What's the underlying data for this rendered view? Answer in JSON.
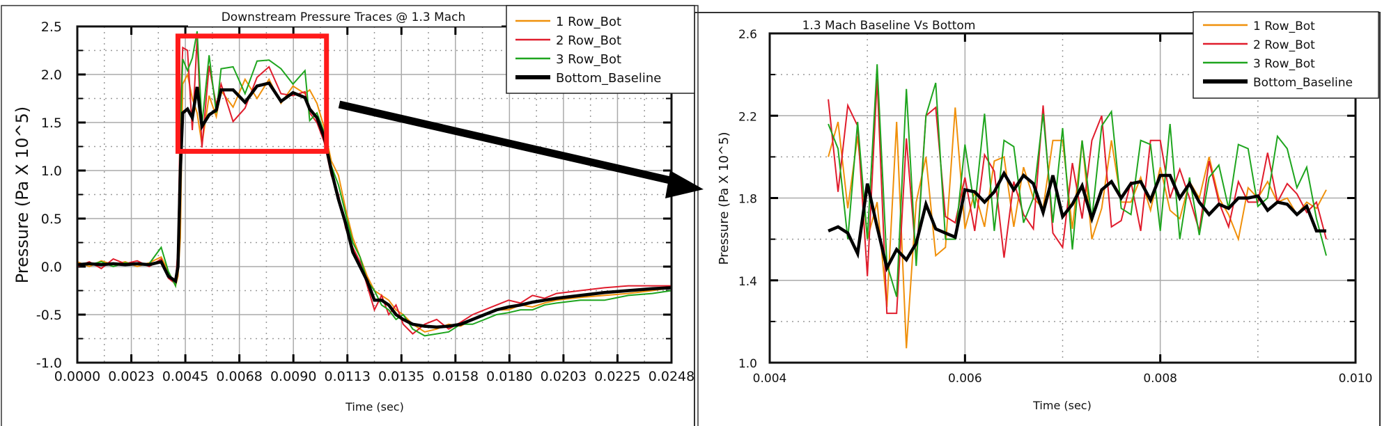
{
  "colors": {
    "row1": "#f0900a",
    "row2": "#e01c2c",
    "row3": "#1ea51e",
    "baseline": "#000000",
    "highlight_box": "#ff1a1a"
  },
  "chart_data": [
    {
      "type": "line",
      "title": "Downstream Pressure Traces @ 1.3 Mach",
      "xlabel": "Time (sec)",
      "ylabel": "Pressure (Pa X 10^5)",
      "xlim": [
        0,
        0.0248
      ],
      "ylim": [
        -1.0,
        2.5
      ],
      "grid": true,
      "legend_position": "top-right",
      "x_tick_labels": [
        "0.0000",
        "0.0023",
        "0.0045",
        "0.0068",
        "0.0090",
        "0.0113",
        "0.0135",
        "0.0158",
        "0.0180",
        "0.0203",
        "0.0225",
        "0.0248"
      ],
      "y_tick_labels": [
        "2.5",
        "2.0",
        "1.5",
        "1.0",
        "0.5",
        "0.0",
        "-0.5",
        "-1.0"
      ],
      "x": [
        0,
        0.0005,
        0.001,
        0.0015,
        0.002,
        0.0025,
        0.003,
        0.0035,
        0.0038,
        0.0041,
        0.0042,
        0.0043,
        0.0044,
        0.0046,
        0.0048,
        0.005,
        0.0052,
        0.0055,
        0.0058,
        0.006,
        0.0065,
        0.007,
        0.0075,
        0.008,
        0.0085,
        0.009,
        0.0095,
        0.0097,
        0.01,
        0.0103,
        0.0106,
        0.0109,
        0.0112,
        0.0115,
        0.0118,
        0.0121,
        0.0124,
        0.0127,
        0.013,
        0.0133,
        0.0136,
        0.014,
        0.0145,
        0.015,
        0.0155,
        0.016,
        0.0165,
        0.017,
        0.0175,
        0.018,
        0.0185,
        0.019,
        0.0195,
        0.02,
        0.021,
        0.022,
        0.023,
        0.024,
        0.0248
      ],
      "series": [
        {
          "name": "1 Row_Bot",
          "color": "#f0900a",
          "values": [
            0.05,
            0.0,
            0.06,
            0.02,
            0.05,
            0.0,
            0.04,
            0.1,
            -0.05,
            -0.2,
            -0.1,
            0.3,
            1.9,
            2.0,
            1.75,
            1.6,
            1.27,
            1.78,
            1.56,
            1.83,
            1.66,
            1.95,
            1.75,
            1.95,
            1.7,
            1.88,
            1.8,
            1.84,
            1.7,
            1.45,
            1.1,
            0.95,
            0.6,
            0.3,
            0.1,
            -0.1,
            -0.25,
            -0.3,
            -0.35,
            -0.45,
            -0.5,
            -0.6,
            -0.68,
            -0.65,
            -0.6,
            -0.62,
            -0.55,
            -0.5,
            -0.45,
            -0.45,
            -0.4,
            -0.42,
            -0.38,
            -0.35,
            -0.32,
            -0.3,
            -0.28,
            -0.25,
            -0.22
          ]
        },
        {
          "name": "2 Row_Bot",
          "color": "#e01c2c",
          "values": [
            0.0,
            0.05,
            -0.02,
            0.08,
            0.03,
            0.06,
            0.0,
            0.08,
            -0.12,
            -0.18,
            0.2,
            1.6,
            2.28,
            2.25,
            1.42,
            2.38,
            1.24,
            2.09,
            1.68,
            1.9,
            1.51,
            1.65,
            1.97,
            2.08,
            1.8,
            1.78,
            1.82,
            1.6,
            1.5,
            1.3,
            0.95,
            0.75,
            0.4,
            0.2,
            0.05,
            -0.2,
            -0.45,
            -0.3,
            -0.5,
            -0.4,
            -0.6,
            -0.7,
            -0.6,
            -0.55,
            -0.65,
            -0.58,
            -0.5,
            -0.45,
            -0.4,
            -0.35,
            -0.38,
            -0.3,
            -0.33,
            -0.28,
            -0.25,
            -0.22,
            -0.2,
            -0.2,
            -0.2
          ]
        },
        {
          "name": "3 Row_Bot",
          "color": "#1ea51e",
          "values": [
            0.03,
            0.02,
            0.05,
            0.0,
            0.04,
            0.02,
            0.03,
            0.2,
            -0.05,
            -0.2,
            0.1,
            1.4,
            2.16,
            2.04,
            2.17,
            2.45,
            1.48,
            2.2,
            1.6,
            2.06,
            2.08,
            1.8,
            2.14,
            2.15,
            2.06,
            1.9,
            2.04,
            1.52,
            1.6,
            1.4,
            1.05,
            0.85,
            0.55,
            0.25,
            0.1,
            -0.15,
            -0.25,
            -0.4,
            -0.45,
            -0.55,
            -0.5,
            -0.65,
            -0.72,
            -0.7,
            -0.68,
            -0.6,
            -0.6,
            -0.55,
            -0.5,
            -0.48,
            -0.45,
            -0.45,
            -0.4,
            -0.38,
            -0.35,
            -0.35,
            -0.3,
            -0.28,
            -0.25
          ]
        },
        {
          "name": "Bottom_Baseline",
          "color": "#000000",
          "values": [
            0.02,
            0.03,
            0.02,
            0.03,
            0.02,
            0.03,
            0.02,
            0.05,
            -0.1,
            -0.15,
            0.0,
            1.0,
            1.6,
            1.64,
            1.55,
            1.87,
            1.46,
            1.58,
            1.63,
            1.84,
            1.84,
            1.71,
            1.88,
            1.91,
            1.72,
            1.81,
            1.76,
            1.64,
            1.55,
            1.35,
            1.0,
            0.7,
            0.45,
            0.15,
            0.0,
            -0.15,
            -0.35,
            -0.35,
            -0.4,
            -0.5,
            -0.55,
            -0.6,
            -0.62,
            -0.63,
            -0.62,
            -0.6,
            -0.55,
            -0.5,
            -0.45,
            -0.42,
            -0.4,
            -0.37,
            -0.35,
            -0.33,
            -0.3,
            -0.27,
            -0.25,
            -0.23,
            -0.22
          ]
        }
      ],
      "annotations": {
        "highlight_region": {
          "x": [
            0.0042,
            0.0104
          ],
          "y": [
            1.2,
            2.4
          ]
        }
      }
    },
    {
      "type": "line",
      "title": "1.3 Mach Baseline Vs Bottom",
      "xlabel": "Time (sec)",
      "ylabel": "Pressure (Pa X 10^5)",
      "xlim": [
        0.004,
        0.01
      ],
      "ylim": [
        1.0,
        2.6
      ],
      "grid": true,
      "legend_position": "top-right",
      "x_tick_labels": [
        "0.004",
        "0.006",
        "0.008",
        "0.010"
      ],
      "y_tick_labels": [
        "2.6",
        "2.2",
        "1.8",
        "1.4",
        "1.0"
      ],
      "x_start": 0.0046,
      "x_step": 0.0001,
      "series": [
        {
          "name": "1 Row_Bot",
          "color": "#f0900a",
          "values": [
            2.0,
            2.17,
            1.75,
            2.1,
            1.6,
            1.78,
            1.27,
            2.17,
            1.07,
            1.78,
            2.0,
            1.52,
            1.56,
            2.24,
            1.65,
            1.83,
            1.66,
            1.98,
            2.0,
            1.66,
            1.95,
            1.8,
            1.75,
            2.08,
            2.08,
            1.65,
            2.08,
            1.6,
            1.75,
            2.08,
            1.78,
            1.78,
            1.9,
            1.74,
            1.95,
            1.74,
            1.7,
            1.88,
            1.8,
            2.0,
            1.8,
            1.72,
            1.6,
            1.85,
            1.8,
            1.88,
            1.78,
            1.8,
            1.72,
            1.78,
            1.75,
            1.84
          ]
        },
        {
          "name": "2 Row_Bot",
          "color": "#e01c2c",
          "values": [
            2.28,
            1.83,
            2.25,
            2.15,
            1.42,
            2.38,
            1.24,
            1.24,
            2.09,
            1.5,
            2.2,
            2.24,
            1.71,
            1.68,
            1.9,
            1.64,
            2.01,
            1.93,
            1.51,
            1.88,
            1.72,
            1.65,
            2.25,
            1.63,
            1.56,
            1.97,
            1.7,
            2.08,
            2.2,
            1.66,
            1.69,
            1.88,
            1.64,
            2.08,
            2.08,
            1.8,
            1.94,
            1.8,
            1.64,
            1.98,
            1.78,
            1.66,
            1.88,
            1.78,
            1.78,
            2.02,
            1.78,
            1.87,
            1.82,
            1.73,
            1.78,
            1.6
          ]
        },
        {
          "name": "3 Row_Bot",
          "color": "#1ea51e",
          "values": [
            2.16,
            2.04,
            1.6,
            2.17,
            1.6,
            2.45,
            1.48,
            1.32,
            2.33,
            1.47,
            2.2,
            2.36,
            1.6,
            1.6,
            2.06,
            1.75,
            2.21,
            1.64,
            2.08,
            2.05,
            1.68,
            1.8,
            2.21,
            1.68,
            2.14,
            1.55,
            2.08,
            1.7,
            2.15,
            2.22,
            1.75,
            1.72,
            2.08,
            2.06,
            1.64,
            2.16,
            1.6,
            1.9,
            1.62,
            1.9,
            1.96,
            1.75,
            2.06,
            2.04,
            1.76,
            1.8,
            2.1,
            2.04,
            1.85,
            1.95,
            1.7,
            1.52
          ]
        },
        {
          "name": "Bottom_Baseline",
          "color": "#000000",
          "values": [
            1.64,
            1.66,
            1.63,
            1.53,
            1.87,
            1.66,
            1.46,
            1.55,
            1.5,
            1.58,
            1.77,
            1.65,
            1.63,
            1.61,
            1.84,
            1.83,
            1.78,
            1.83,
            1.92,
            1.84,
            1.91,
            1.87,
            1.73,
            1.91,
            1.71,
            1.77,
            1.86,
            1.7,
            1.84,
            1.88,
            1.8,
            1.87,
            1.88,
            1.79,
            1.91,
            1.91,
            1.8,
            1.87,
            1.78,
            1.72,
            1.77,
            1.75,
            1.8,
            1.8,
            1.81,
            1.74,
            1.78,
            1.77,
            1.72,
            1.76,
            1.64,
            1.64
          ]
        }
      ]
    }
  ]
}
